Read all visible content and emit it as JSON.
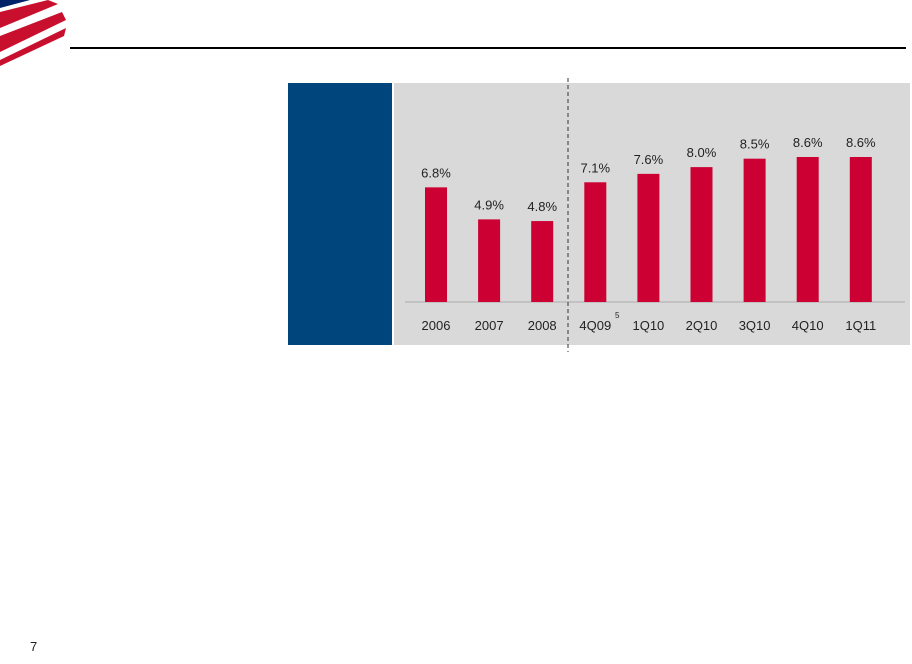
{
  "page_number": "7",
  "chart_data": {
    "type": "bar",
    "categories": [
      "2006",
      "2007",
      "2008",
      "4Q09",
      "1Q10",
      "2Q10",
      "3Q10",
      "4Q10",
      "1Q11"
    ],
    "values": [
      6.8,
      4.9,
      4.8,
      7.1,
      7.6,
      8.0,
      8.5,
      8.6,
      8.6
    ],
    "value_labels": [
      "6.8%",
      "4.9%",
      "4.8%",
      "7.1%",
      "7.6%",
      "8.0%",
      "8.5%",
      "8.6%",
      "8.6%"
    ],
    "color": "#cc0033",
    "annotations": [
      "5"
    ]
  }
}
